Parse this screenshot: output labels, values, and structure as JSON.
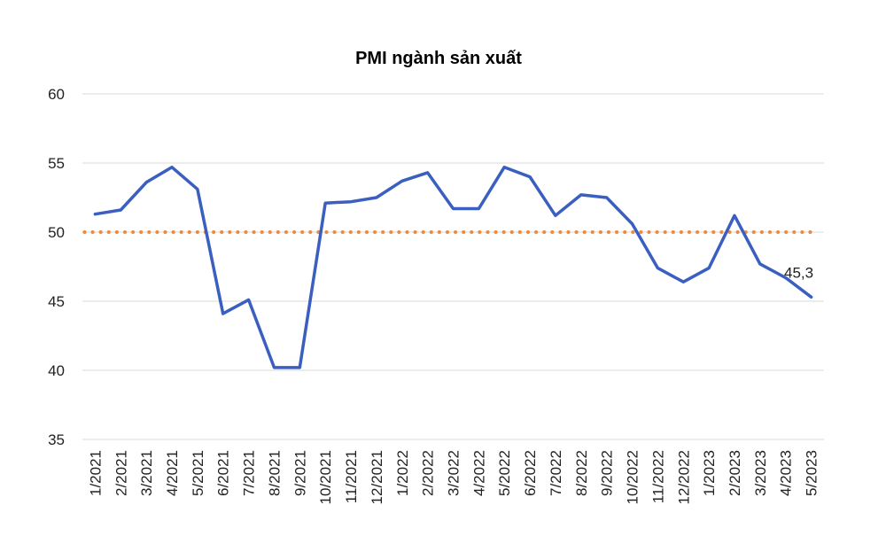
{
  "chart_data": {
    "type": "line",
    "title": "PMI ngành sản xuất",
    "xlabel": "",
    "ylabel": "",
    "ylim": [
      35,
      60
    ],
    "yticks": [
      "35",
      "40",
      "45",
      "50",
      "55",
      "60"
    ],
    "grid": true,
    "legend": "none",
    "categories": [
      "1/2021",
      "2/2021",
      "3/2021",
      "4/2021",
      "5/2021",
      "6/2021",
      "7/2021",
      "8/2021",
      "9/2021",
      "10/2021",
      "11/2021",
      "12/2021",
      "1/2022",
      "2/2022",
      "3/2022",
      "4/2022",
      "5/2022",
      "6/2022",
      "7/2022",
      "8/2022",
      "9/2022",
      "10/2022",
      "11/2022",
      "12/2022",
      "1/2023",
      "2/2023",
      "3/2023",
      "4/2023",
      "5/2023"
    ],
    "series": [
      {
        "color": "#3a5fc0",
        "values": [
          51.3,
          51.6,
          53.6,
          54.7,
          53.1,
          44.1,
          45.1,
          40.2,
          40.2,
          52.1,
          52.2,
          52.5,
          53.7,
          54.3,
          51.7,
          51.7,
          54.7,
          54.0,
          51.2,
          52.7,
          52.5,
          50.6,
          47.4,
          46.4,
          47.4,
          51.2,
          47.7,
          46.7,
          45.3
        ]
      }
    ],
    "reference_line": {
      "value": 50,
      "color": "#ef8a3c"
    },
    "data_labels": [
      {
        "index": 28,
        "text": "45,3"
      }
    ],
    "gridline_color": "#d9d9d9"
  }
}
